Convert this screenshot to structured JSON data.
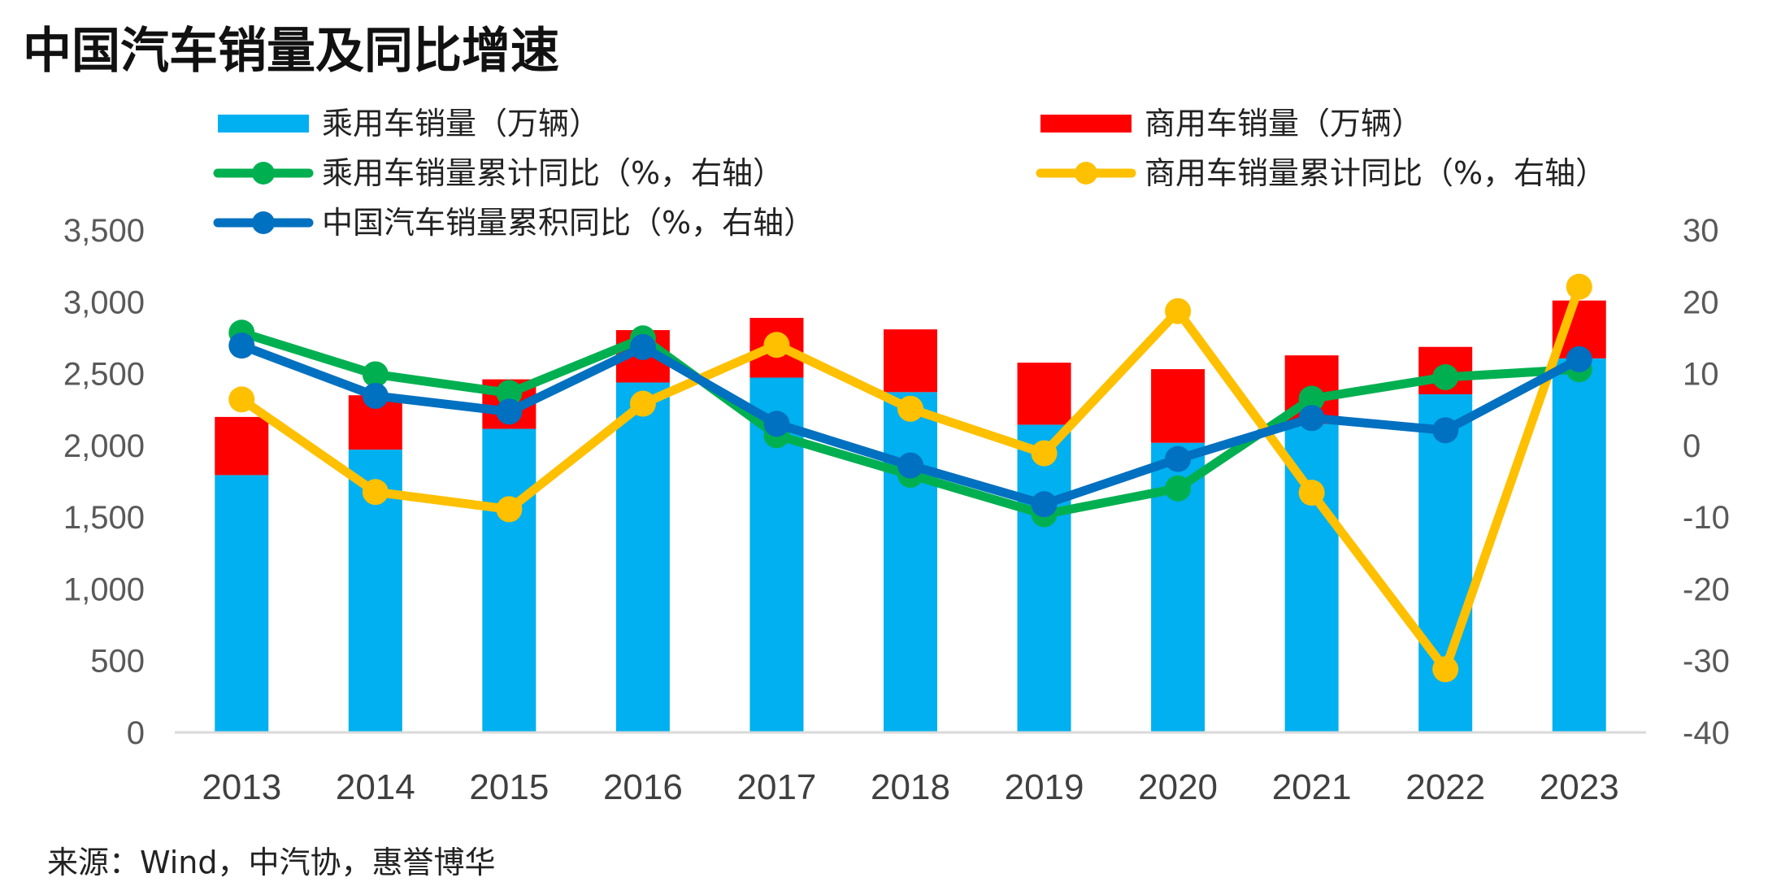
{
  "title": "中国汽车销量及同比增速",
  "source": "来源：Wind，中汽协，惠誉博华",
  "chart_data": {
    "type": "bar",
    "categories": [
      "2013",
      "2014",
      "2015",
      "2016",
      "2017",
      "2018",
      "2019",
      "2020",
      "2021",
      "2022",
      "2023"
    ],
    "bar_series": [
      {
        "name": "乘用车销量（万辆）",
        "color": "#00B0F0",
        "values": [
          1793,
          1970,
          2115,
          2438,
          2472,
          2371,
          2144,
          2018,
          2148,
          2356,
          2606
        ]
      },
      {
        "name": "商用车销量（万辆）",
        "color": "#FF0000",
        "values": [
          405,
          379,
          345,
          365,
          416,
          437,
          432,
          513,
          479,
          330,
          403
        ]
      }
    ],
    "line_series": [
      {
        "name": "乘用车销量累计同比（%，右轴）",
        "color": "#00B050",
        "values": [
          15.7,
          9.9,
          7.3,
          14.9,
          1.4,
          -4.1,
          -9.6,
          -6.0,
          6.5,
          9.5,
          10.6
        ]
      },
      {
        "name": "商用车销量累计同比（%，右轴）",
        "color": "#FFC000",
        "values": [
          6.4,
          -6.5,
          -8.9,
          5.8,
          14.0,
          5.1,
          -1.1,
          18.7,
          -6.6,
          -31.2,
          22.1
        ]
      },
      {
        "name": "中国汽车销量累积同比（%，右轴）",
        "color": "#0070C0",
        "values": [
          13.9,
          6.9,
          4.7,
          13.7,
          3.0,
          -2.8,
          -8.2,
          -1.9,
          3.8,
          2.1,
          12.0
        ]
      }
    ],
    "y_left": {
      "min": 0,
      "max": 3500,
      "step": 500,
      "tick_labels": [
        "0",
        "500",
        "1,000",
        "1,500",
        "2,000",
        "2,500",
        "3,000",
        "3,500"
      ]
    },
    "y_right": {
      "min": -40,
      "max": 30,
      "step": 10,
      "tick_labels": [
        "-40",
        "-30",
        "-20",
        "-10",
        "0",
        "10",
        "20",
        "30"
      ]
    },
    "legend_position": "top"
  }
}
